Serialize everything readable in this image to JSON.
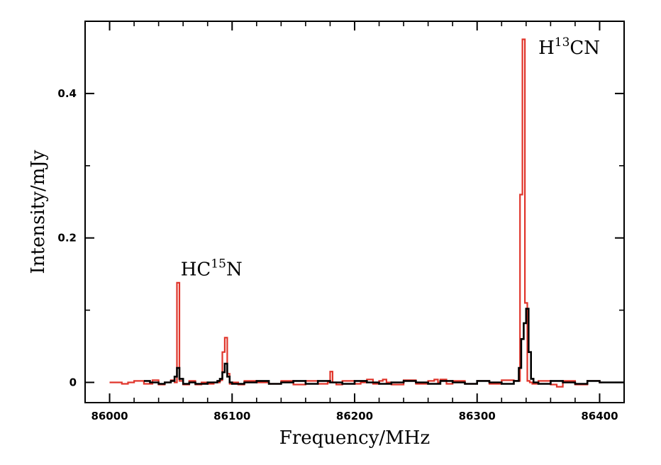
{
  "chart_data": {
    "type": "line",
    "title": "",
    "xlabel": "Frequency/MHz",
    "ylabel": "Intensity/mJy",
    "xlim": [
      85980,
      86420
    ],
    "ylim": [
      -0.028,
      0.5
    ],
    "xticks": [
      {
        "value": 86000,
        "label": "86000"
      },
      {
        "value": 86100,
        "label": "86100"
      },
      {
        "value": 86200,
        "label": "86200"
      },
      {
        "value": 86300,
        "label": "86300"
      },
      {
        "value": 86400,
        "label": "86400"
      }
    ],
    "yticks": [
      {
        "value": 0,
        "label": "0"
      },
      {
        "value": 0.2,
        "label": "0.2"
      },
      {
        "value": 0.4,
        "label": "0.4"
      }
    ],
    "grid": false,
    "legend": "none",
    "annotations": [
      {
        "base": "HC",
        "sup": "15",
        "tail": "N",
        "x": 86058,
        "y": 0.148
      },
      {
        "base": "H",
        "sup": "13",
        "tail": "CN",
        "x": 86350,
        "y": 0.455
      }
    ],
    "series": [
      {
        "color": "#e0352b",
        "style": "step",
        "x": [
          86000,
          86010,
          86015,
          86020,
          86028,
          86035,
          86040,
          86045,
          86050,
          86053,
          86055,
          86057,
          86060,
          86065,
          86070,
          86075,
          86080,
          86085,
          86090,
          86092,
          86094,
          86096,
          86098,
          86100,
          86105,
          86110,
          86120,
          86130,
          86140,
          86150,
          86160,
          86170,
          86178,
          86180,
          86182,
          86185,
          86190,
          86200,
          86205,
          86210,
          86215,
          86220,
          86223,
          86226,
          86230,
          86240,
          86250,
          86260,
          86265,
          86268,
          86270,
          86275,
          86280,
          86290,
          86300,
          86310,
          86320,
          86330,
          86335,
          86337,
          86339,
          86341,
          86343,
          86345,
          86350,
          86360,
          86365,
          86370,
          86380,
          86390,
          86400
        ],
        "y": [
          0.0,
          -0.002,
          0.0,
          0.002,
          -0.002,
          0.003,
          -0.003,
          0.0,
          0.003,
          0.0,
          0.138,
          0.002,
          -0.003,
          0.002,
          -0.003,
          0.0,
          -0.002,
          0.0,
          0.003,
          0.042,
          0.062,
          0.012,
          -0.002,
          0.0,
          -0.003,
          0.002,
          0.0,
          -0.002,
          0.002,
          -0.003,
          0.002,
          -0.002,
          0.0,
          0.015,
          0.0,
          -0.003,
          0.002,
          -0.002,
          0.0,
          0.004,
          -0.002,
          0.002,
          0.004,
          0.0,
          -0.003,
          0.003,
          -0.002,
          0.002,
          0.004,
          0.0,
          0.004,
          -0.002,
          0.002,
          -0.002,
          0.002,
          -0.002,
          0.003,
          0.002,
          0.26,
          0.475,
          0.11,
          0.002,
          0.0,
          -0.002,
          0.002,
          -0.003,
          -0.006,
          0.002,
          -0.003,
          0.002,
          0.0
        ]
      },
      {
        "color": "#000000",
        "style": "step",
        "x": [
          86028,
          86033,
          86040,
          86045,
          86050,
          86053,
          86055,
          86057,
          86060,
          86065,
          86070,
          86080,
          86088,
          86090,
          86092,
          86094,
          86096,
          86098,
          86100,
          86110,
          86120,
          86130,
          86140,
          86150,
          86160,
          86170,
          86180,
          86190,
          86200,
          86210,
          86220,
          86230,
          86240,
          86250,
          86260,
          86270,
          86280,
          86290,
          86300,
          86310,
          86320,
          86330,
          86334,
          86336,
          86338,
          86340,
          86342,
          86344,
          86346,
          86350,
          86360,
          86370,
          86380,
          86390,
          86400,
          86410,
          86418
        ],
        "y": [
          0.002,
          0.0,
          -0.002,
          0.0,
          0.002,
          0.008,
          0.02,
          0.005,
          -0.002,
          0.0,
          -0.002,
          0.0,
          0.002,
          0.005,
          0.014,
          0.026,
          0.008,
          0.0,
          -0.002,
          0.0,
          0.002,
          -0.002,
          0.0,
          0.002,
          -0.002,
          0.002,
          0.0,
          -0.002,
          0.002,
          0.0,
          -0.002,
          0.0,
          0.002,
          0.0,
          -0.002,
          0.002,
          0.0,
          -0.002,
          0.002,
          0.0,
          -0.002,
          0.002,
          0.02,
          0.06,
          0.082,
          0.102,
          0.042,
          0.005,
          0.0,
          -0.002,
          0.002,
          0.0,
          -0.002,
          0.002,
          0.0,
          0.0,
          0.0
        ]
      }
    ]
  }
}
